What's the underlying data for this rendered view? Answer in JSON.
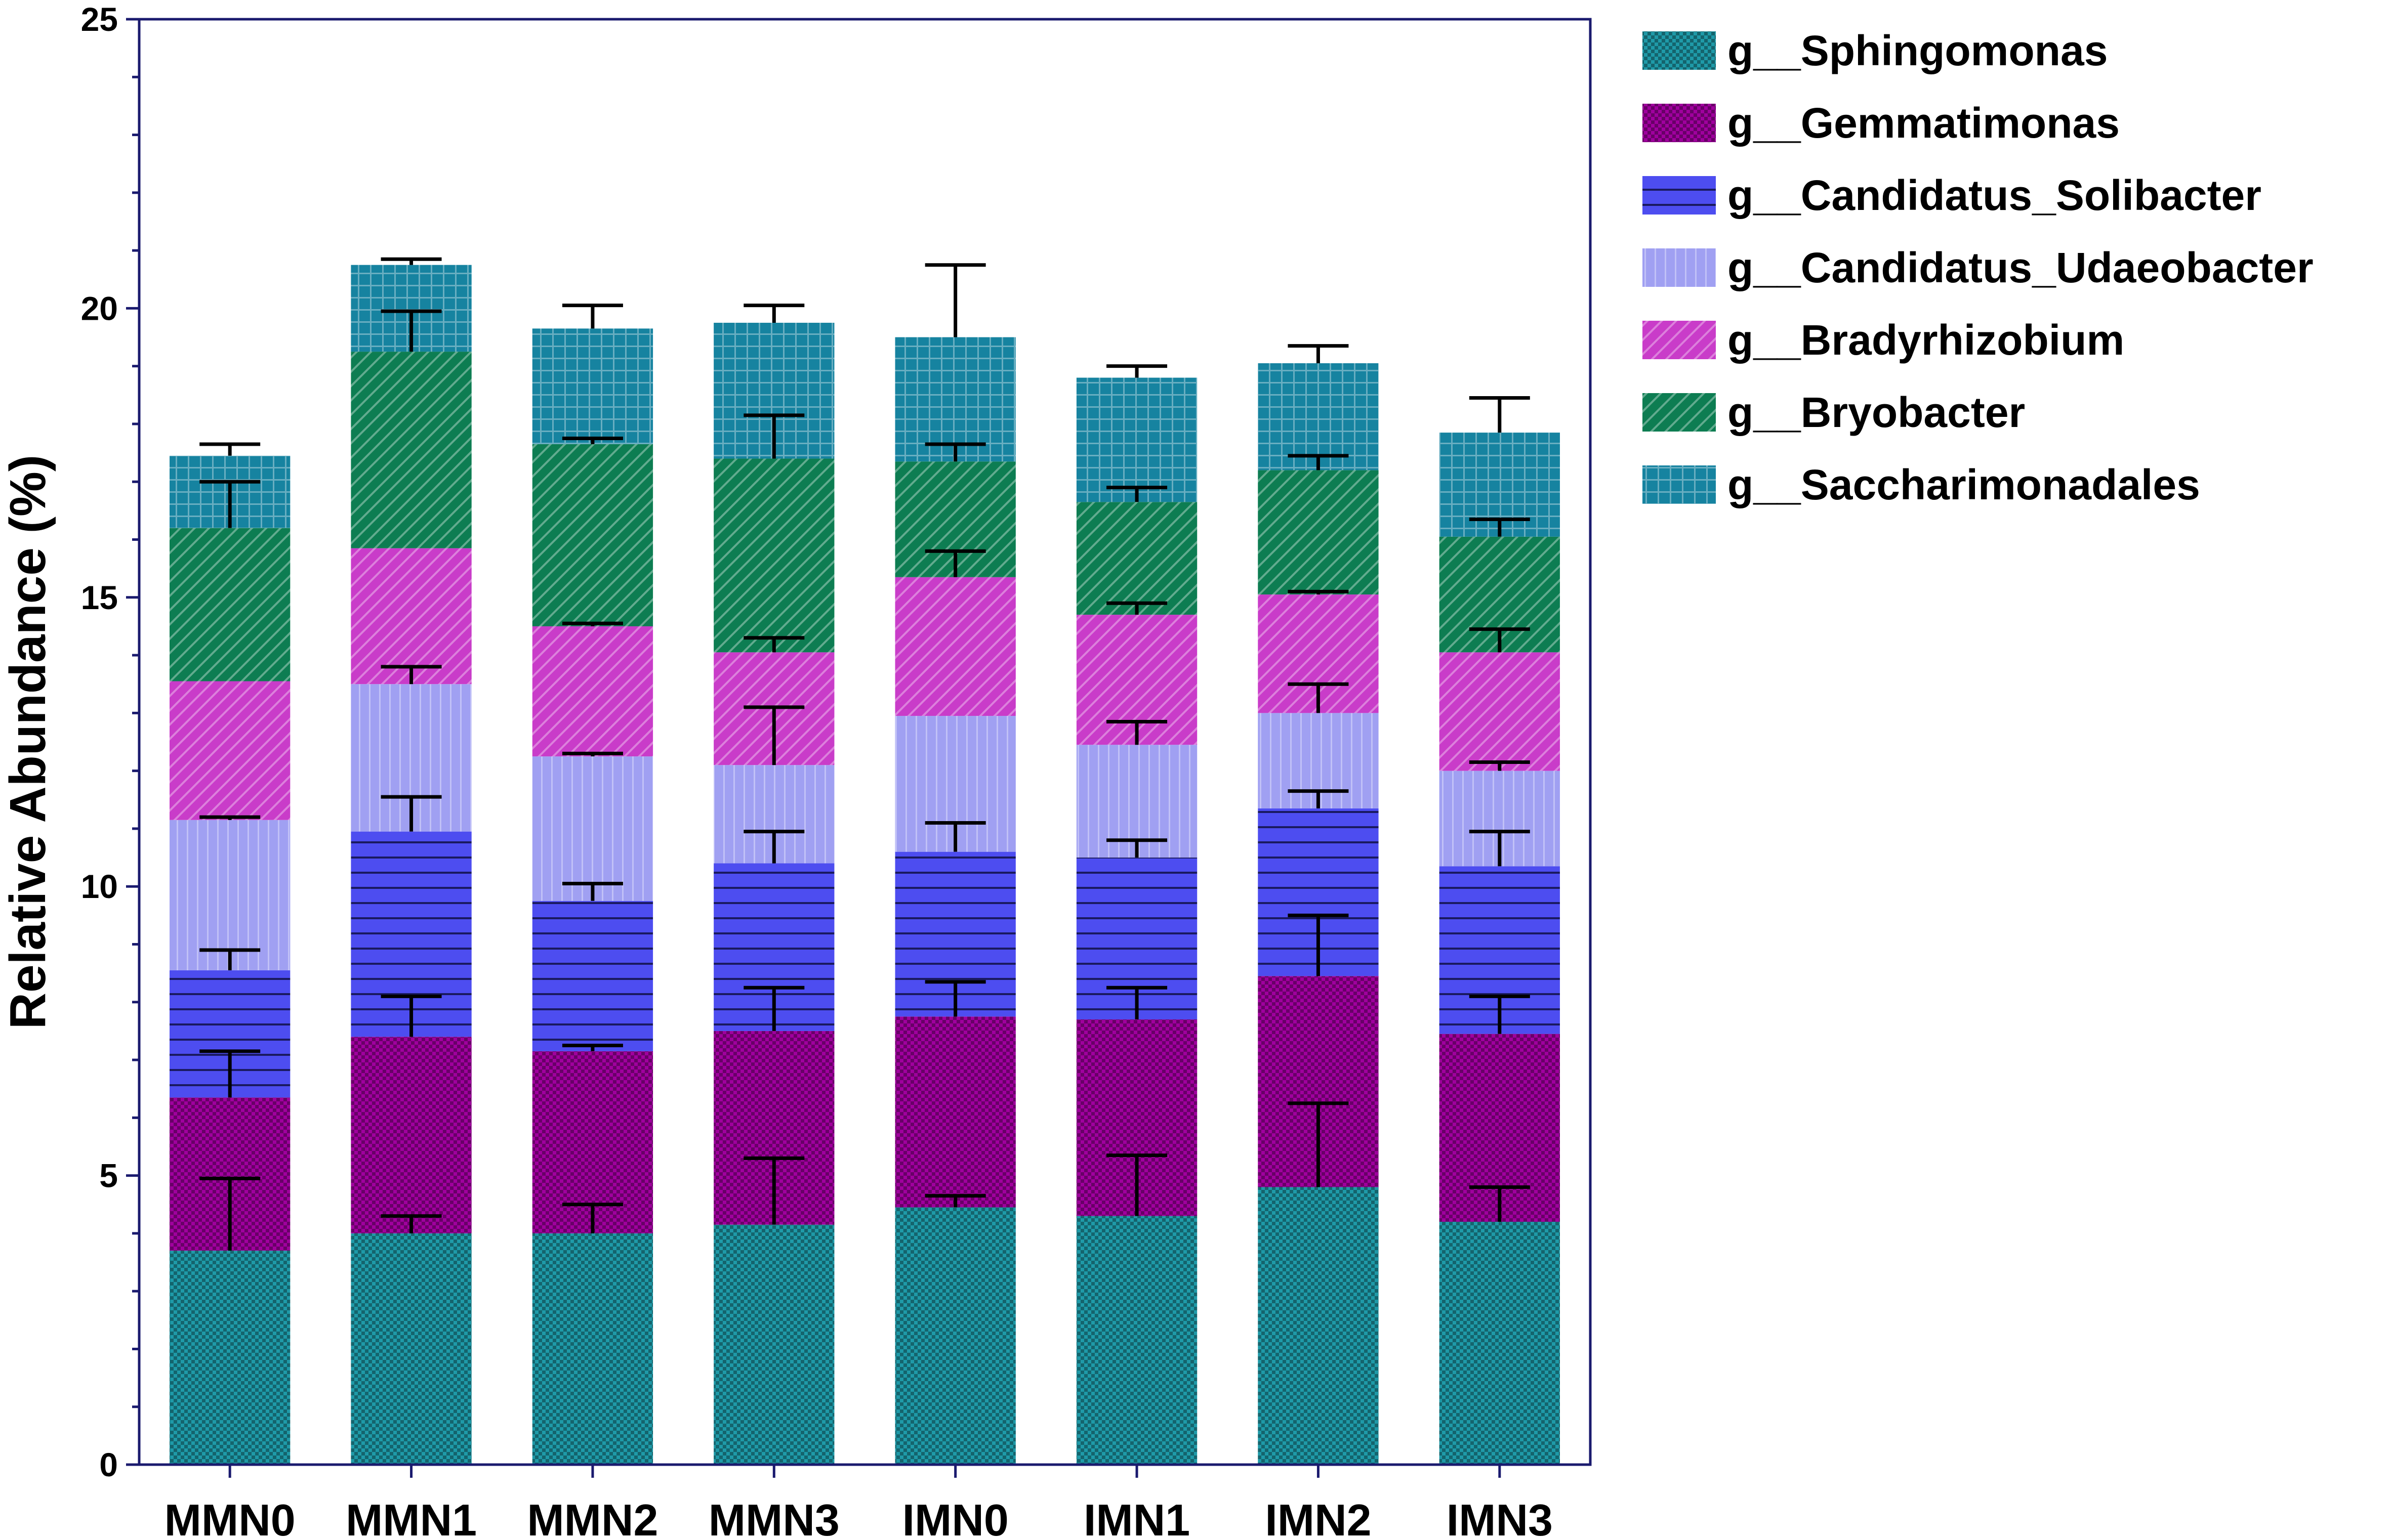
{
  "chart_data": {
    "type": "bar",
    "stacked": true,
    "title": "",
    "xlabel": "",
    "ylabel": "Relative Abundance (%)",
    "ylim": [
      0,
      25
    ],
    "yticks": [
      "0",
      "5",
      "10",
      "15",
      "20",
      "25"
    ],
    "categories": [
      "MMN0",
      "MMN1",
      "MMN2",
      "MMN3",
      "IMN0",
      "IMN1",
      "IMN2",
      "IMN3"
    ],
    "series": [
      {
        "name": "g__Sphingomonas",
        "color": "#1f9aa8",
        "pattern": "checker",
        "values": [
          3.7,
          4.0,
          4.0,
          4.15,
          4.45,
          4.3,
          4.8,
          4.2
        ],
        "errors": [
          1.25,
          0.3,
          0.5,
          1.15,
          0.2,
          1.05,
          1.45,
          0.6
        ]
      },
      {
        "name": "g__Gemmatimonas",
        "color": "#a0009e",
        "pattern": "checker",
        "values": [
          2.65,
          3.4,
          3.15,
          3.35,
          3.3,
          3.4,
          3.65,
          3.25
        ],
        "errors": [
          0.8,
          0.7,
          0.1,
          0.75,
          0.6,
          0.55,
          1.05,
          0.65
        ]
      },
      {
        "name": "g__Candidatus_Solibacter",
        "color": "#4d4df0",
        "pattern": "hlines",
        "values": [
          2.2,
          3.55,
          2.6,
          2.9,
          2.85,
          2.8,
          2.9,
          2.9
        ],
        "errors": [
          0.35,
          0.6,
          0.3,
          0.55,
          0.5,
          0.3,
          0.3,
          0.6
        ]
      },
      {
        "name": "g__Candidatus_Udaeobacter",
        "color": "#a0a0f2",
        "pattern": "vlines",
        "values": [
          2.6,
          2.55,
          2.5,
          1.7,
          2.35,
          1.95,
          1.65,
          1.65
        ],
        "errors": [
          0.05,
          0.3,
          0.05,
          1.0,
          0.0,
          0.4,
          0.5,
          0.15
        ]
      },
      {
        "name": "g__Bradyrhizobium",
        "color": "#c93cc9",
        "pattern": "diagonal",
        "values": [
          2.4,
          2.35,
          2.25,
          1.95,
          2.4,
          2.25,
          2.05,
          2.05
        ],
        "errors": [
          0.0,
          0.0,
          0.05,
          0.25,
          0.45,
          0.2,
          0.05,
          0.4
        ]
      },
      {
        "name": "g__Bryobacter",
        "color": "#0d7d52",
        "pattern": "diagonal",
        "values": [
          2.65,
          3.4,
          3.15,
          3.35,
          2.0,
          1.95,
          2.15,
          2.0
        ],
        "errors": [
          0.8,
          0.7,
          0.1,
          0.75,
          0.3,
          0.25,
          0.25,
          0.3
        ]
      },
      {
        "name": "g__Saccharimonadales",
        "color": "#1683a0",
        "pattern": "grid",
        "values": [
          1.25,
          1.5,
          2.0,
          2.35,
          2.15,
          2.15,
          1.85,
          1.8
        ],
        "errors": [
          0.2,
          0.1,
          0.4,
          0.3,
          1.25,
          0.2,
          0.3,
          0.6
        ]
      }
    ],
    "legend_position": "right",
    "grid": false
  }
}
